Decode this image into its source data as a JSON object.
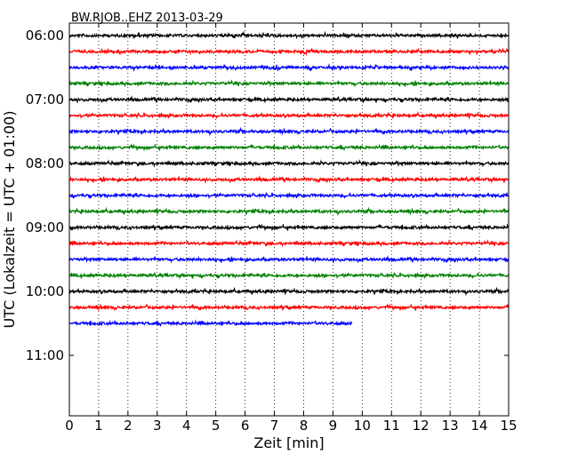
{
  "chart_data": {
    "type": "line",
    "title": "BW.RJOB..EHZ 2013-03-29",
    "xlabel": "Zeit  [min]",
    "ylabel": "UTC (Lokalzeit = UTC + 01:00)",
    "xlim": [
      0,
      15
    ],
    "x_ticks": [
      "0",
      "1",
      "2",
      "3",
      "4",
      "5",
      "6",
      "7",
      "8",
      "9",
      "10",
      "11",
      "12",
      "13",
      "14",
      "15"
    ],
    "y_ticks": [
      "06:00",
      "07:00",
      "08:00",
      "09:00",
      "10:00",
      "11:00"
    ],
    "grid": "vertical dotted",
    "trace_colors": [
      "#000000",
      "#ff0000",
      "#0000ff",
      "#008000"
    ],
    "traces": [
      {
        "start": "06:00",
        "end_min": 15,
        "color": "#000000"
      },
      {
        "start": "06:15",
        "end_min": 15,
        "color": "#ff0000"
      },
      {
        "start": "06:30",
        "end_min": 15,
        "color": "#0000ff"
      },
      {
        "start": "06:45",
        "end_min": 15,
        "color": "#008000"
      },
      {
        "start": "07:00",
        "end_min": 15,
        "color": "#000000"
      },
      {
        "start": "07:15",
        "end_min": 15,
        "color": "#ff0000"
      },
      {
        "start": "07:30",
        "end_min": 15,
        "color": "#0000ff"
      },
      {
        "start": "07:45",
        "end_min": 15,
        "color": "#008000"
      },
      {
        "start": "08:00",
        "end_min": 15,
        "color": "#000000"
      },
      {
        "start": "08:15",
        "end_min": 15,
        "color": "#ff0000"
      },
      {
        "start": "08:30",
        "end_min": 15,
        "color": "#0000ff"
      },
      {
        "start": "08:45",
        "end_min": 15,
        "color": "#008000"
      },
      {
        "start": "09:00",
        "end_min": 15,
        "color": "#000000"
      },
      {
        "start": "09:15",
        "end_min": 15,
        "color": "#ff0000"
      },
      {
        "start": "09:30",
        "end_min": 15,
        "color": "#0000ff"
      },
      {
        "start": "09:45",
        "end_min": 15,
        "color": "#008000"
      },
      {
        "start": "10:00",
        "end_min": 15,
        "color": "#000000"
      },
      {
        "start": "10:15",
        "end_min": 15,
        "color": "#ff0000"
      },
      {
        "start": "10:30",
        "end_min": 9.65,
        "color": "#0000ff"
      }
    ]
  }
}
